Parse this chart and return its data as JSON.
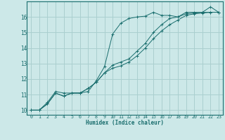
{
  "xlabel": "Humidex (Indice chaleur)",
  "ylabel": "",
  "bg_color": "#cce8e8",
  "grid_color": "#aacfcf",
  "line_color": "#1a6e6e",
  "xlim": [
    -0.5,
    23.5
  ],
  "ylim": [
    9.7,
    17.0
  ],
  "xticks": [
    0,
    1,
    2,
    3,
    4,
    5,
    6,
    7,
    8,
    9,
    10,
    11,
    12,
    13,
    14,
    15,
    16,
    17,
    18,
    19,
    20,
    21,
    22,
    23
  ],
  "yticks": [
    10,
    11,
    12,
    13,
    14,
    15,
    16
  ],
  "series": [
    {
      "x": [
        0,
        1,
        2,
        3,
        4,
        5,
        6,
        7,
        8,
        9,
        10,
        11,
        12,
        13,
        14,
        15,
        16,
        17,
        18,
        19,
        20,
        21,
        22,
        23
      ],
      "y": [
        10.0,
        10.0,
        10.5,
        11.2,
        11.1,
        11.1,
        11.1,
        11.2,
        11.9,
        12.8,
        14.9,
        15.6,
        15.9,
        16.0,
        16.05,
        16.3,
        16.1,
        16.1,
        16.0,
        16.3,
        16.3,
        16.3,
        16.65,
        16.3
      ]
    },
    {
      "x": [
        0,
        1,
        2,
        3,
        4,
        5,
        6,
        7,
        8,
        9,
        10,
        11,
        12,
        13,
        14,
        15,
        16,
        17,
        18,
        19,
        20,
        21,
        22,
        23
      ],
      "y": [
        10.0,
        10.0,
        10.4,
        11.1,
        10.9,
        11.1,
        11.1,
        11.4,
        11.8,
        12.4,
        12.7,
        12.85,
        13.1,
        13.5,
        14.0,
        14.6,
        15.1,
        15.5,
        15.8,
        16.1,
        16.2,
        16.25,
        16.3,
        16.3
      ]
    },
    {
      "x": [
        0,
        1,
        2,
        3,
        4,
        5,
        6,
        7,
        8,
        9,
        10,
        11,
        12,
        13,
        14,
        15,
        16,
        17,
        18,
        19,
        20,
        21,
        22,
        23
      ],
      "y": [
        10.0,
        10.0,
        10.4,
        11.1,
        10.9,
        11.1,
        11.1,
        11.4,
        11.8,
        12.4,
        12.9,
        13.1,
        13.3,
        13.8,
        14.3,
        15.0,
        15.5,
        15.9,
        16.0,
        16.2,
        16.25,
        16.3,
        16.3,
        16.3
      ]
    }
  ]
}
